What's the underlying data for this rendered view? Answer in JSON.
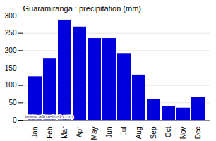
{
  "chart_data": {
    "type": "bar",
    "title": "Guaramiranga : precipitation (mm)",
    "categories": [
      "Jan",
      "Feb",
      "Mar",
      "Apr",
      "May",
      "Jun",
      "Jul",
      "Aug",
      "Sep",
      "Oct",
      "Nov",
      "Dec"
    ],
    "values": [
      125,
      178,
      288,
      268,
      235,
      235,
      192,
      130,
      60,
      40,
      35,
      65
    ],
    "color": "#0000dd",
    "ylim": [
      0,
      300
    ],
    "yticks": [
      0,
      50,
      100,
      150,
      200,
      250,
      300
    ],
    "grid": true,
    "annotations": [
      "www.allmetsat.com"
    ]
  }
}
